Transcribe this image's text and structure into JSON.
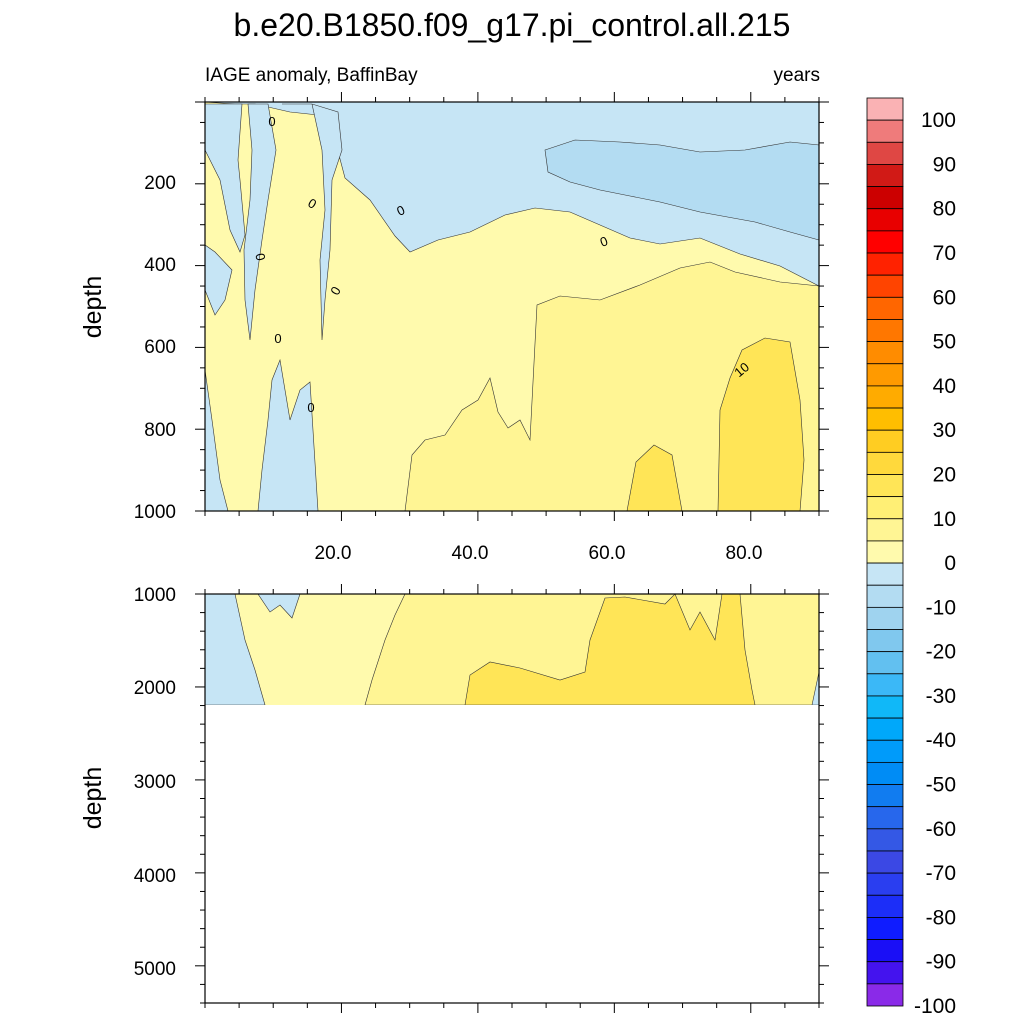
{
  "chart_data": {
    "type": "contour",
    "title": "b.e20.B1850.f09_g17.pi_control.all.215",
    "subtitle_left": "IAGE anomaly, BaffinBay",
    "subtitle_right": "years",
    "panels": [
      {
        "name": "upper",
        "ylabel": "depth",
        "ylim": [
          1000,
          0
        ],
        "xlim": [
          0,
          90
        ],
        "yticks": [
          "200",
          "400",
          "600",
          "800",
          "1000"
        ],
        "xticks": [
          "20.0",
          "40.0",
          "60.0",
          "80.0"
        ],
        "contour_labels": [
          "0",
          "0",
          "0",
          "0",
          "0",
          "0",
          "0",
          "0",
          "10"
        ]
      },
      {
        "name": "lower",
        "ylabel": "depth",
        "ylim": [
          1000,
          5400
        ],
        "xlim": [
          0,
          90
        ],
        "yticks": [
          "1000",
          "2000",
          "3000",
          "4000",
          "5000"
        ],
        "data_bottom_depth": 2200
      }
    ],
    "colorbar": {
      "labels": [
        "100",
        "90",
        "80",
        "70",
        "60",
        "50",
        "40",
        "30",
        "20",
        "10",
        "0",
        "-10",
        "-20",
        "-30",
        "-40",
        "-50",
        "-60",
        "-70",
        "-80",
        "-90",
        "-100"
      ],
      "colors": [
        "#fab2b4",
        "#ef7b7b",
        "#df4744",
        "#d11a16",
        "#cc0000",
        "#e80000",
        "#ff0000",
        "#ff2200",
        "#ff4400",
        "#ff6600",
        "#ff7700",
        "#ff8c00",
        "#ff9a00",
        "#ffab00",
        "#ffbe00",
        "#ffcd22",
        "#ffd93c",
        "#ffe557",
        "#ffef75",
        "#fff594",
        "#fffaad",
        "#c6e5f5",
        "#b3dcf2",
        "#9fd3ef",
        "#80c8ee",
        "#62c0f0",
        "#3bb8f7",
        "#10b8f8",
        "#00a8fa",
        "#009bfa",
        "#008cf5",
        "#117cf0",
        "#2767ec",
        "#3458e5",
        "#3b48e4",
        "#2a3ef0",
        "#1c2ef8",
        "#0f1cff",
        "#1a0ff6",
        "#4413ee",
        "#8a2ae8"
      ]
    }
  }
}
